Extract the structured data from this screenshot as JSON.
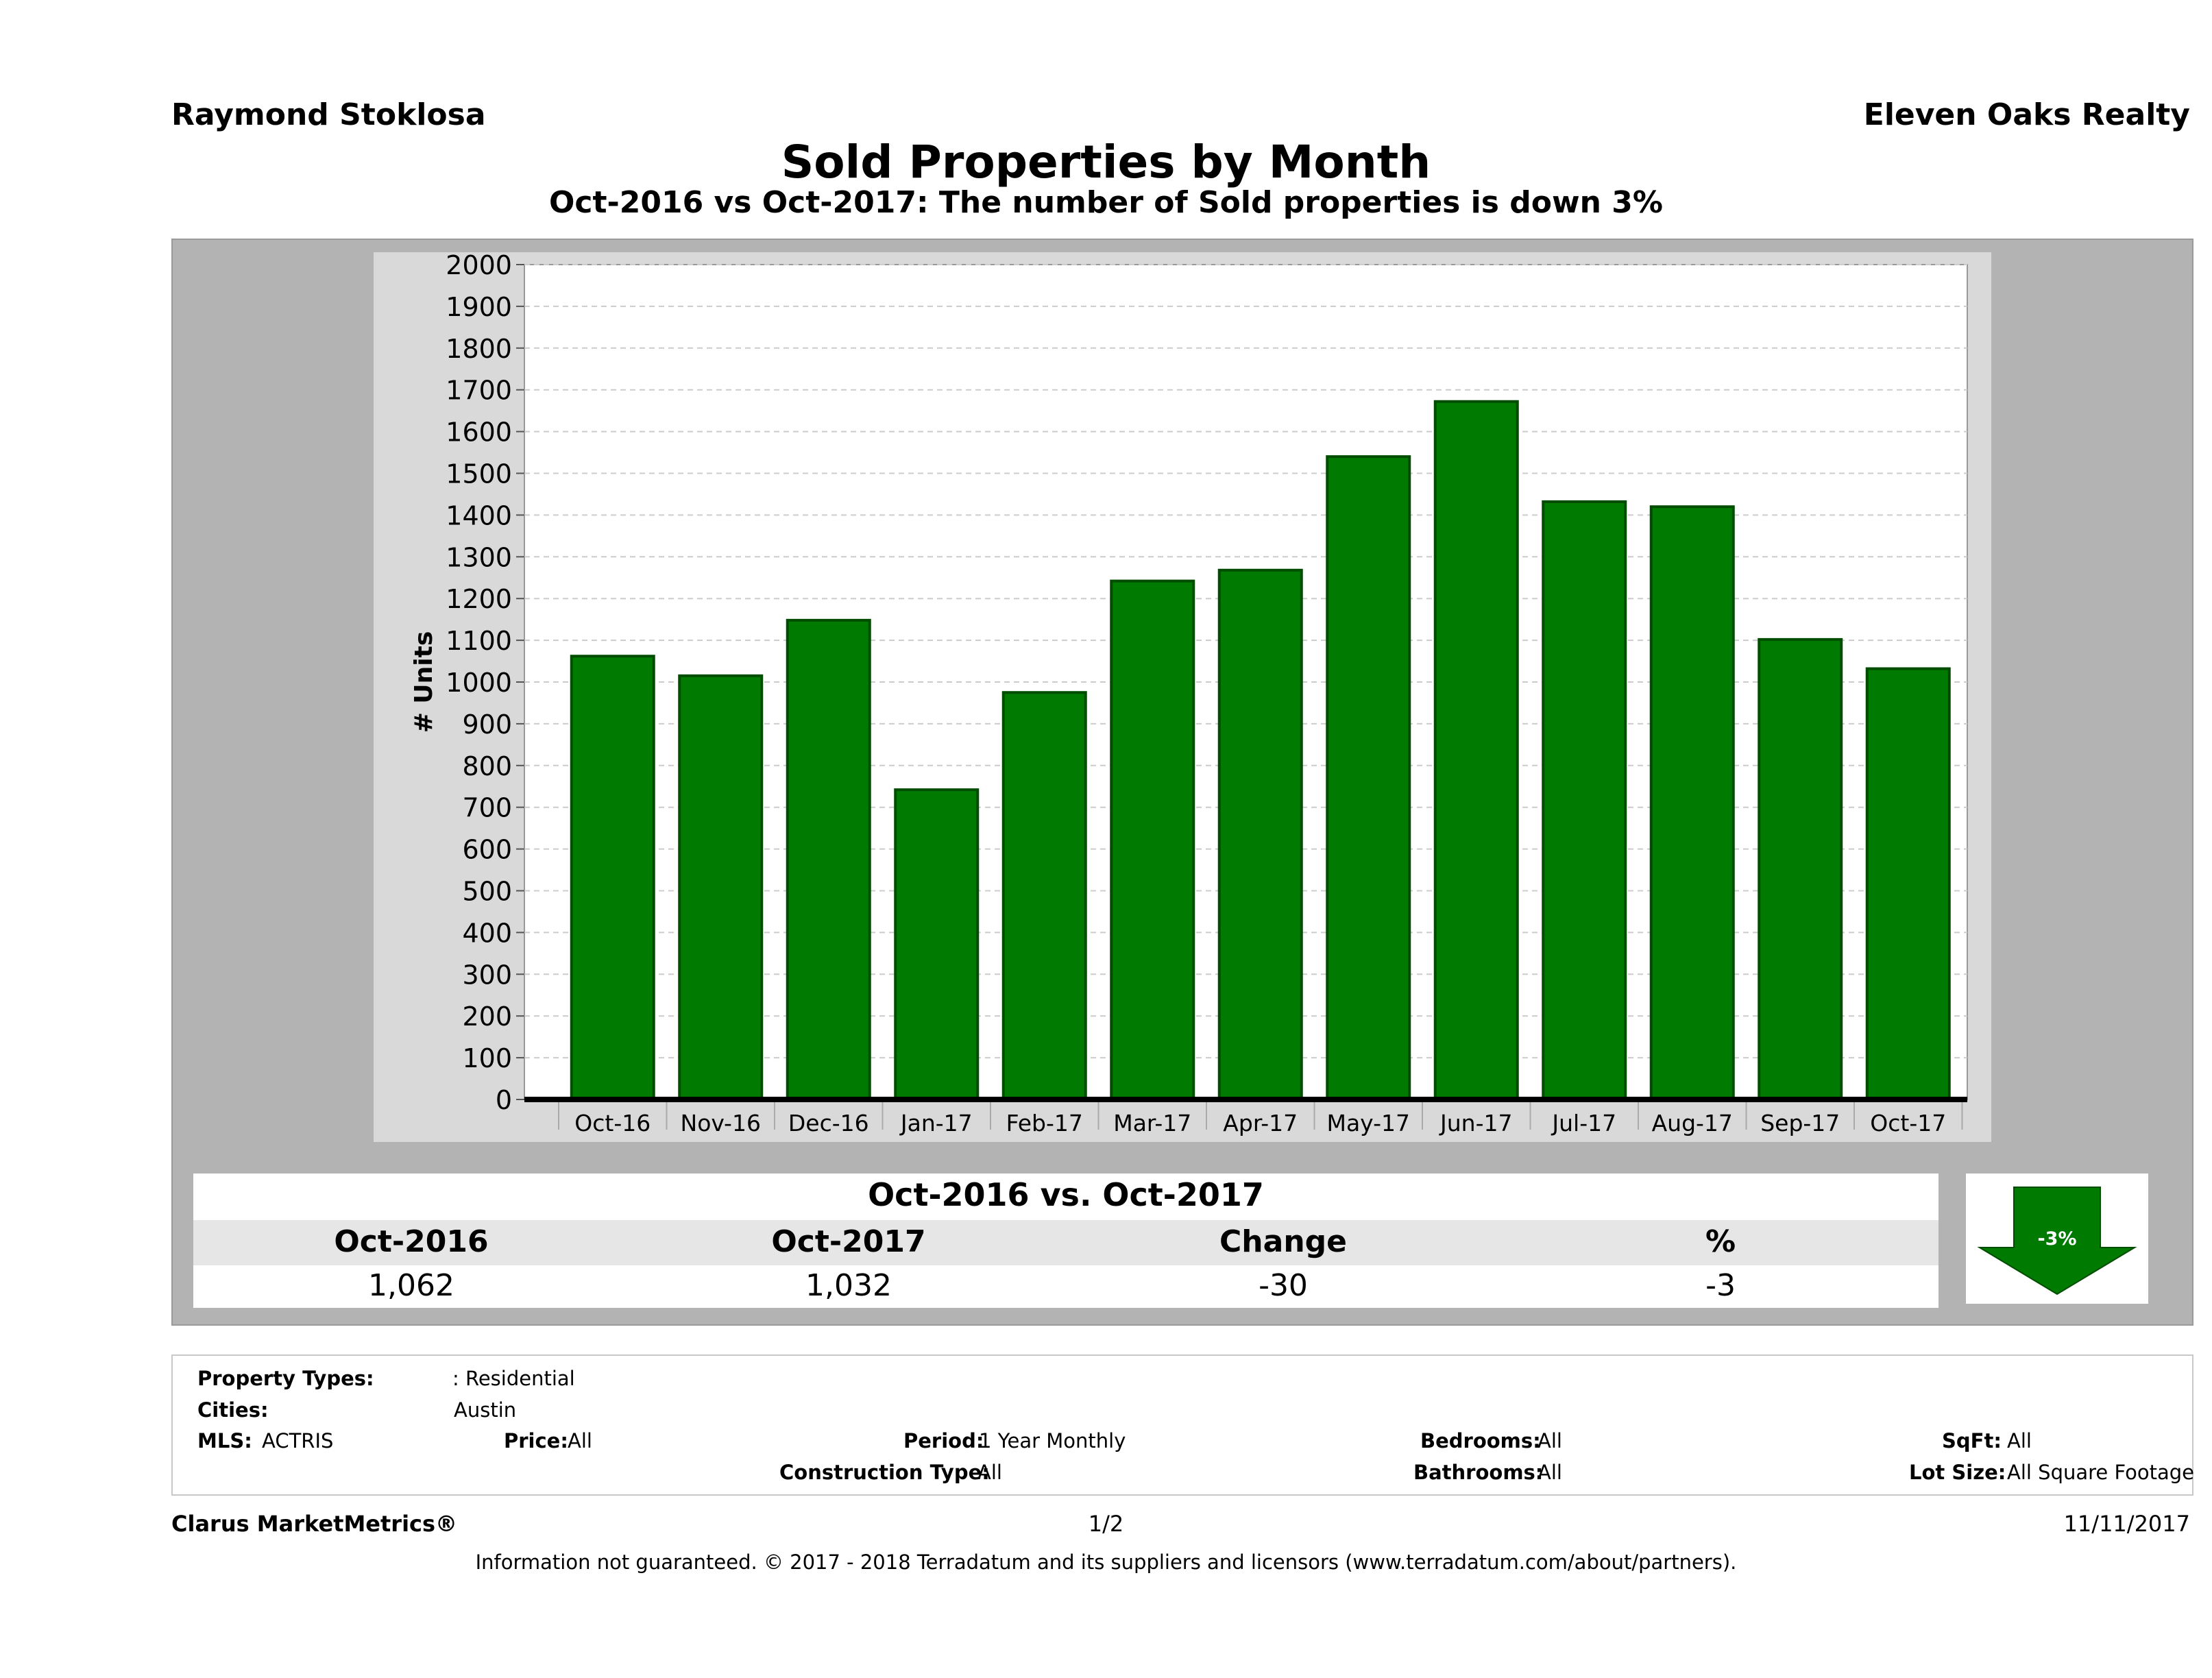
{
  "header": {
    "agent_name": "Raymond Stoklosa",
    "brokerage": "Eleven Oaks Realty",
    "title": "Sold Properties by Month",
    "subtitle": "Oct-2016 vs Oct-2017: The number of Sold  properties is down 3%"
  },
  "colors": {
    "bar": "#007a00",
    "bar_edge": "#004d00",
    "panel": "#d9d9d9",
    "frame": "#b3b3b3"
  },
  "chart_data": {
    "type": "bar",
    "title": "Sold Properties by Month",
    "ylabel": "# Units",
    "xlabel": "",
    "ylim": [
      0,
      2000
    ],
    "yticks": [
      "0",
      "100",
      "200",
      "300",
      "400",
      "500",
      "600",
      "700",
      "800",
      "900",
      "1000",
      "1100",
      "1200",
      "1300",
      "1400",
      "1500",
      "1600",
      "1700",
      "1800",
      "1900",
      "2000"
    ],
    "categories": [
      "Oct-16",
      "Nov-16",
      "Dec-16",
      "Jan-17",
      "Feb-17",
      "Mar-17",
      "Apr-17",
      "May-17",
      "Jun-17",
      "Jul-17",
      "Aug-17",
      "Sep-17",
      "Oct-17"
    ],
    "values": [
      1062,
      1015,
      1148,
      742,
      975,
      1242,
      1268,
      1540,
      1672,
      1432,
      1420,
      1102,
      1032
    ],
    "grid": true
  },
  "comparison": {
    "title": "Oct-2016 vs. Oct-2017",
    "headers": [
      "Oct-2016",
      "Oct-2017",
      "Change",
      "%"
    ],
    "values": [
      "1,062",
      "1,032",
      "-30",
      "-3"
    ],
    "badge": "-3%",
    "badge_icon": "down-arrow-icon"
  },
  "properties": {
    "property_types_label": "Property Types:",
    "property_types_value": ": Residential",
    "cities_label": "Cities:",
    "cities_value": "Austin",
    "mls_label": "MLS:",
    "mls_value": "ACTRIS",
    "price_label": "Price:",
    "price_value": "All",
    "period_label": "Period:",
    "period_value": "1 Year Monthly",
    "construction_label": "Construction Type:",
    "construction_value": "All",
    "bedrooms_label": "Bedrooms:",
    "bedrooms_value": "All",
    "bathrooms_label": "Bathrooms:",
    "bathrooms_value": "All",
    "sqft_label": "SqFt:",
    "sqft_value": "All",
    "lotsize_label": "Lot Size:",
    "lotsize_value": "All Square Footage"
  },
  "footer": {
    "product": "Clarus MarketMetrics®",
    "page": "1/2",
    "date": "11/11/2017",
    "disclaimer": "Information not guaranteed. © 2017 - 2018 Terradatum and its suppliers and licensors (www.terradatum.com/about/partners)."
  }
}
